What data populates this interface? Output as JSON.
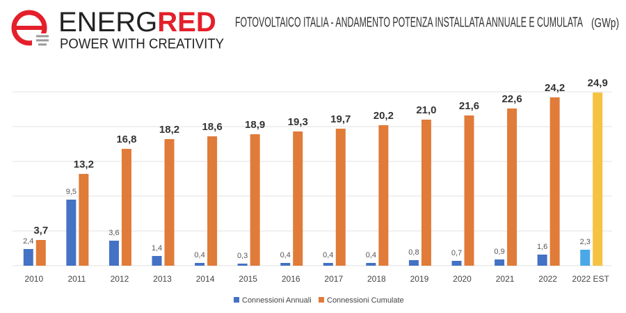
{
  "header": {
    "brand_a": "ENERG",
    "brand_b": "RED",
    "tagline": "POWER WITH CREATIVITY"
  },
  "chart_data": {
    "type": "bar",
    "title": "FOTOVOLTAICO ITALIA - ANDAMENTO POTENZA INSTALLATA ANNUALE E CUMULATA",
    "unit": "(GWp)",
    "categories": [
      "2010",
      "2011",
      "2012",
      "2013",
      "2014",
      "2015",
      "2016",
      "2017",
      "2018",
      "2019",
      "2020",
      "2021",
      "2022",
      "2022 EST"
    ],
    "series": [
      {
        "name": "Connessioni Annuali",
        "color": "#4472c4",
        "colors": [
          "#4472c4",
          "#4472c4",
          "#4472c4",
          "#4472c4",
          "#4472c4",
          "#4472c4",
          "#4472c4",
          "#4472c4",
          "#4472c4",
          "#4472c4",
          "#4472c4",
          "#4472c4",
          "#4472c4",
          "#4aa8e8"
        ],
        "values": [
          2.4,
          9.5,
          3.6,
          1.4,
          0.4,
          0.3,
          0.4,
          0.4,
          0.4,
          0.8,
          0.7,
          0.9,
          1.6,
          2.3
        ],
        "value_labels": [
          "2,4",
          "9,5",
          "3,6",
          "1,4",
          "0,4",
          "0,3",
          "0,4",
          "0,4",
          "0,4",
          "0,8",
          "0,7",
          "0,9",
          "1,6",
          "2,3"
        ]
      },
      {
        "name": "Connessioni Cumulate",
        "color": "#e07b39",
        "colors": [
          "#e07b39",
          "#e07b39",
          "#e07b39",
          "#e07b39",
          "#e07b39",
          "#e07b39",
          "#e07b39",
          "#e07b39",
          "#e07b39",
          "#e07b39",
          "#e07b39",
          "#e07b39",
          "#e07b39",
          "#f5c242"
        ],
        "values": [
          3.7,
          13.2,
          16.8,
          18.2,
          18.6,
          18.9,
          19.3,
          19.7,
          20.2,
          21.0,
          21.6,
          22.6,
          24.2,
          24.9
        ],
        "value_labels": [
          "3,7",
          "13,2",
          "16,8",
          "18,2",
          "18,6",
          "18,9",
          "19,3",
          "19,7",
          "20,2",
          "21,0",
          "21,6",
          "22,6",
          "24,2",
          "24,9"
        ]
      }
    ],
    "ylim": [
      0,
      25
    ],
    "yticks": [
      0,
      5,
      10,
      15,
      20,
      25
    ],
    "grid": true,
    "legend": "bottom"
  }
}
